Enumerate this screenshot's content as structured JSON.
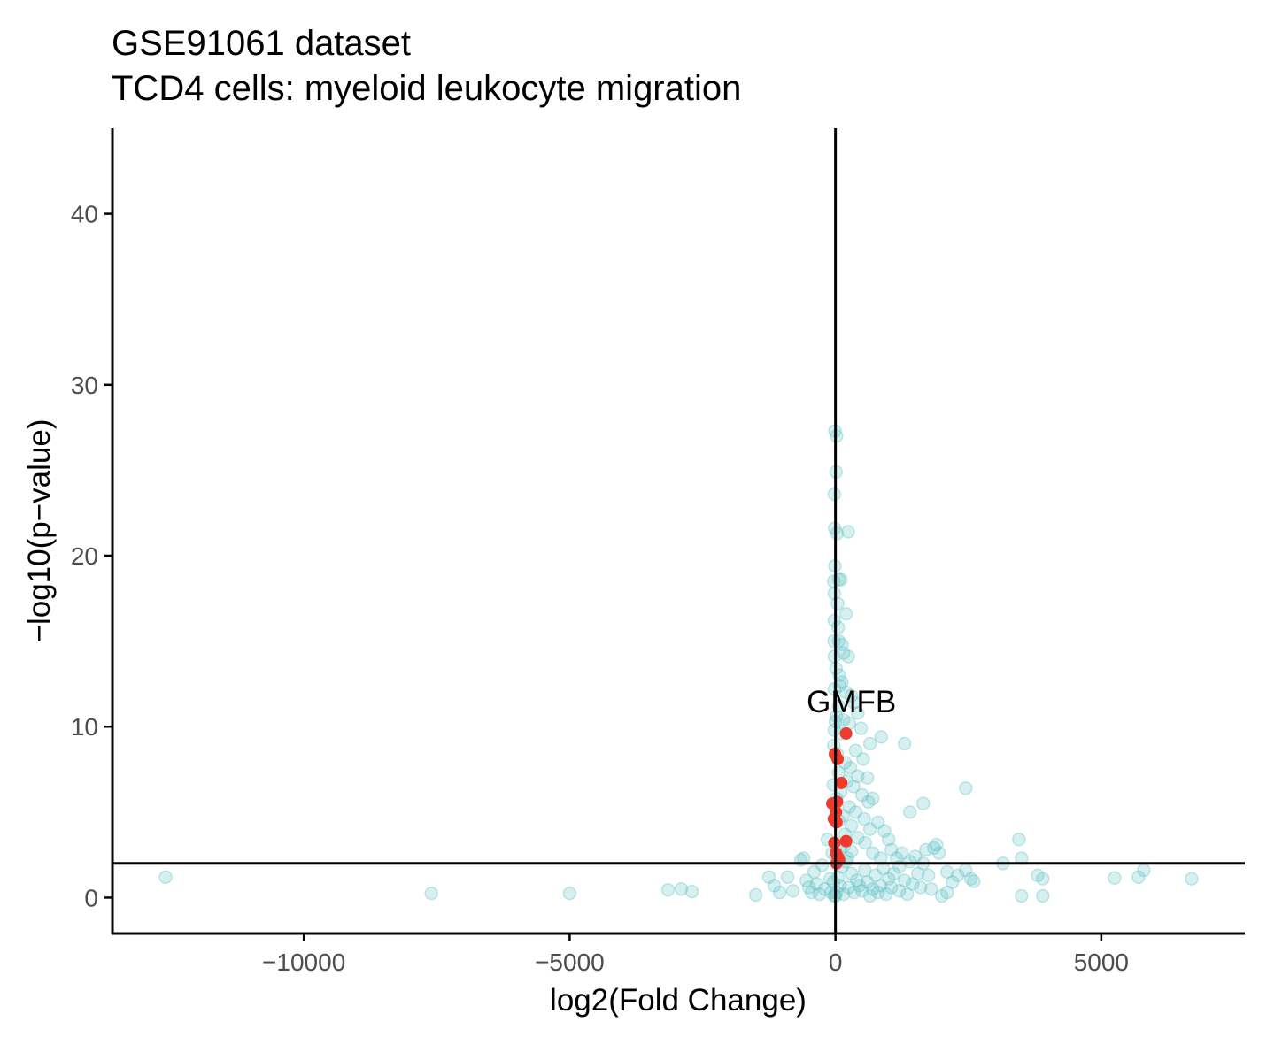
{
  "chart_data": {
    "type": "scatter",
    "title_line1": "GSE91061 dataset",
    "title_line2": "TCD4 cells: myeloid leukocyte migration",
    "xlabel": "log2(Fold Change)",
    "ylabel": "−log10(p−value)",
    "xlim": [
      -13600,
      7700
    ],
    "ylim": [
      -2.1,
      45
    ],
    "x_ticks": [
      -10000,
      -5000,
      0,
      5000
    ],
    "x_tick_labels": [
      "−10000",
      "−5000",
      "0",
      "5000"
    ],
    "y_ticks": [
      0,
      10,
      20,
      30,
      40
    ],
    "y_tick_labels": [
      "0",
      "10",
      "20",
      "30",
      "40"
    ],
    "vline_x": 0,
    "hline_y": 2,
    "grid": false,
    "colors": {
      "background_genes": "#5BBFC3",
      "highlight_genes": "#EE3B2C"
    },
    "annotation": {
      "label": "GMFB",
      "x": 300,
      "y": 11.5
    },
    "series": [
      {
        "name": "",
        "role": "background",
        "points": [
          [
            -12600,
            1.2
          ],
          [
            -7600,
            0.25
          ],
          [
            -5000,
            0.25
          ],
          [
            -3150,
            0.45
          ],
          [
            -2900,
            0.5
          ],
          [
            -2700,
            0.35
          ],
          [
            -1500,
            0.15
          ],
          [
            -1250,
            1.2
          ],
          [
            -1150,
            0.7
          ],
          [
            -1050,
            0.3
          ],
          [
            -900,
            1.2
          ],
          [
            -800,
            0.4
          ],
          [
            -650,
            2.2
          ],
          [
            -600,
            2.3
          ],
          [
            -550,
            1.0
          ],
          [
            -500,
            0.6
          ],
          [
            -450,
            0.3
          ],
          [
            -400,
            1.5
          ],
          [
            -350,
            0.8
          ],
          [
            -300,
            0.2
          ],
          [
            -250,
            1.9
          ],
          [
            -200,
            0.5
          ],
          [
            -150,
            3.4
          ],
          [
            -100,
            1.1
          ],
          [
            -80,
            0.3
          ],
          [
            -60,
            2.6
          ],
          [
            -40,
            0.9
          ],
          [
            -20,
            0.1
          ],
          [
            -10,
            27.3
          ],
          [
            20,
            27.0
          ],
          [
            10,
            24.9
          ],
          [
            -20,
            23.6
          ],
          [
            -15,
            21.6
          ],
          [
            30,
            21.3
          ],
          [
            240,
            21.4
          ],
          [
            -10,
            19.4
          ],
          [
            60,
            18.6
          ],
          [
            -30,
            18.5
          ],
          [
            100,
            18.6
          ],
          [
            200,
            16.6
          ],
          [
            -20,
            17.8
          ],
          [
            40,
            17.2
          ],
          [
            -20,
            16.2
          ],
          [
            50,
            15.8
          ],
          [
            -25,
            15.0
          ],
          [
            60,
            15.0
          ],
          [
            120,
            14.8
          ],
          [
            150,
            14.3
          ],
          [
            -20,
            14.1
          ],
          [
            240,
            14.1
          ],
          [
            10,
            13.4
          ],
          [
            70,
            13.0
          ],
          [
            120,
            12.6
          ],
          [
            -20,
            12.2
          ],
          [
            200,
            12.0
          ],
          [
            300,
            11.8
          ],
          [
            350,
            11.4
          ],
          [
            60,
            11.2
          ],
          [
            420,
            10.8
          ],
          [
            20,
            10.6
          ],
          [
            150,
            10.4
          ],
          [
            260,
            10.2
          ],
          [
            480,
            9.9
          ],
          [
            -20,
            9.8
          ],
          [
            100,
            9.6
          ],
          [
            860,
            9.4
          ],
          [
            650,
            9.0
          ],
          [
            1300,
            9.0
          ],
          [
            380,
            8.6
          ],
          [
            30,
            8.4
          ],
          [
            520,
            8.1
          ],
          [
            180,
            7.9
          ],
          [
            280,
            7.6
          ],
          [
            60,
            7.3
          ],
          [
            420,
            7.1
          ],
          [
            600,
            7.0
          ],
          [
            220,
            6.8
          ],
          [
            340,
            6.5
          ],
          [
            100,
            6.2
          ],
          [
            500,
            6.0
          ],
          [
            700,
            5.8
          ],
          [
            1650,
            5.5
          ],
          [
            620,
            5.6
          ],
          [
            1400,
            5.0
          ],
          [
            260,
            5.3
          ],
          [
            380,
            5.0
          ],
          [
            140,
            4.8
          ],
          [
            540,
            4.6
          ],
          [
            800,
            4.4
          ],
          [
            300,
            4.2
          ],
          [
            650,
            4.0
          ],
          [
            920,
            3.9
          ],
          [
            180,
            3.7
          ],
          [
            420,
            3.5
          ],
          [
            1000,
            3.4
          ],
          [
            560,
            3.2
          ],
          [
            2450,
            6.4
          ],
          [
            3450,
            3.4
          ],
          [
            1900,
            3.1
          ],
          [
            1850,
            2.9
          ],
          [
            1950,
            2.6
          ],
          [
            1700,
            2.8
          ],
          [
            3500,
            2.3
          ],
          [
            3150,
            2.0
          ],
          [
            700,
            2.6
          ],
          [
            850,
            2.3
          ],
          [
            1150,
            2.3
          ],
          [
            1400,
            2.1
          ],
          [
            1650,
            2.0
          ],
          [
            1200,
            1.8
          ],
          [
            900,
            1.7
          ],
          [
            2100,
            1.5
          ],
          [
            2300,
            1.3
          ],
          [
            2550,
            1.1
          ],
          [
            2600,
            0.95
          ],
          [
            3800,
            1.3
          ],
          [
            3900,
            1.1
          ],
          [
            5250,
            1.15
          ],
          [
            5700,
            1.2
          ],
          [
            5800,
            1.6
          ],
          [
            6700,
            1.1
          ],
          [
            3500,
            0.1
          ],
          [
            3900,
            0.1
          ],
          [
            2100,
            0.3
          ],
          [
            2000,
            0.1
          ],
          [
            1600,
            0.6
          ],
          [
            1550,
            1.4
          ],
          [
            1350,
            0.2
          ],
          [
            1200,
            0.4
          ],
          [
            1050,
            0.6
          ],
          [
            1000,
            1.1
          ],
          [
            950,
            0.2
          ],
          [
            850,
            0.7
          ],
          [
            800,
            0.3
          ],
          [
            750,
            1.3
          ],
          [
            700,
            0.5
          ],
          [
            650,
            0.1
          ],
          [
            600,
            0.9
          ],
          [
            550,
            1.6
          ],
          [
            500,
            0.4
          ],
          [
            450,
            0.7
          ],
          [
            400,
            1.0
          ],
          [
            350,
            0.3
          ],
          [
            300,
            1.4
          ],
          [
            250,
            0.6
          ],
          [
            200,
            2.1
          ],
          [
            150,
            0.2
          ],
          [
            120,
            1.8
          ],
          [
            80,
            0.7
          ],
          [
            50,
            1.2
          ],
          [
            20,
            0.3
          ],
          [
            10,
            2.4
          ],
          [
            0,
            0.1
          ],
          [
            90,
            2.8
          ],
          [
            160,
            3.0
          ],
          [
            230,
            2.3
          ],
          [
            300,
            2.7
          ],
          [
            60,
            4.5
          ],
          [
            20,
            5.8
          ],
          [
            -40,
            6.6
          ],
          [
            -30,
            8.9
          ],
          [
            0,
            10.3
          ],
          [
            80,
            12.4
          ],
          [
            1100,
            1.4
          ],
          [
            1300,
            1.0
          ],
          [
            1450,
            0.8
          ],
          [
            1750,
            1.3
          ],
          [
            1800,
            0.5
          ],
          [
            2200,
            0.9
          ],
          [
            2450,
            1.6
          ],
          [
            1250,
            2.6
          ],
          [
            1500,
            2.4
          ],
          [
            1050,
            2.8
          ]
        ]
      },
      {
        "name": "",
        "role": "highlight",
        "points": [
          [
            200,
            9.6
          ],
          [
            -10,
            8.4
          ],
          [
            40,
            8.1
          ],
          [
            110,
            6.7
          ],
          [
            30,
            5.6
          ],
          [
            -60,
            5.5
          ],
          [
            10,
            5.0
          ],
          [
            -30,
            4.6
          ],
          [
            20,
            4.4
          ],
          [
            200,
            3.3
          ],
          [
            -20,
            3.2
          ],
          [
            10,
            2.6
          ],
          [
            40,
            2.4
          ],
          [
            70,
            2.2
          ],
          [
            20,
            2.0
          ]
        ]
      }
    ]
  }
}
